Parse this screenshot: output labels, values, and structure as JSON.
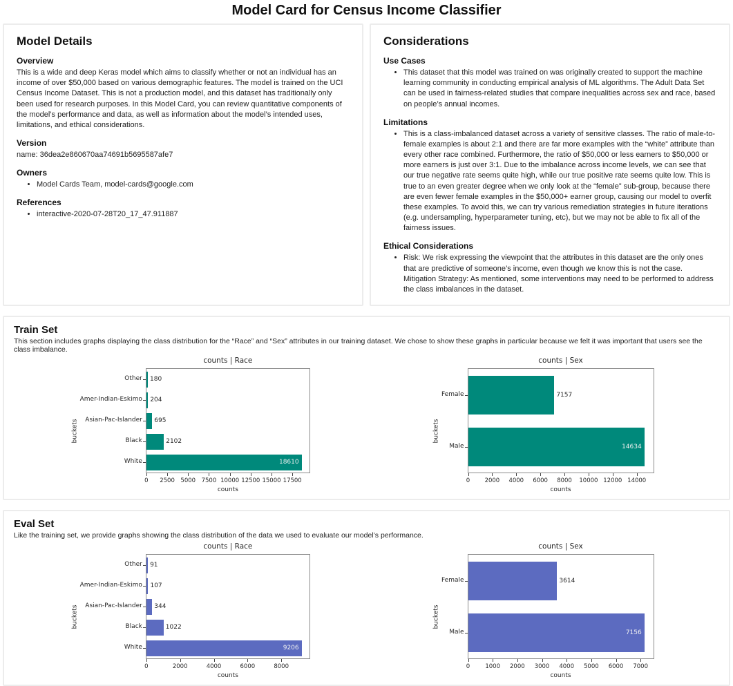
{
  "page_title": "Model Card for Census Income Classifier",
  "model_details": {
    "title": "Model Details",
    "overview_heading": "Overview",
    "overview_text": "This is a wide and deep Keras model which aims to classify whether or not an individual has an income of over $50,000 based on various demographic features. The model is trained on the UCI Census Income Dataset. This is not a production model, and this dataset has traditionally only been used for research purposes. In this Model Card, you can review quantitative components of the model’s performance and data, as well as information about the model’s intended uses, limitations, and ethical considerations.",
    "version_heading": "Version",
    "version_text": "name: 36dea2e860670aa74691b5695587afe7",
    "owners_heading": "Owners",
    "owners_items": [
      "Model Cards Team, model-cards@google.com"
    ],
    "references_heading": "References",
    "references_items": [
      "interactive-2020-07-28T20_17_47.911887"
    ]
  },
  "considerations": {
    "title": "Considerations",
    "use_cases_heading": "Use Cases",
    "use_cases_items": [
      "This dataset that this model was trained on was originally created to support the machine learning community in conducting empirical analysis of ML algorithms. The Adult Data Set can be used in fairness-related studies that compare inequalities across sex and race, based on people’s annual incomes."
    ],
    "limitations_heading": "Limitations",
    "limitations_items": [
      "This is a class-imbalanced dataset across a variety of sensitive classes. The ratio of male-to-female examples is about 2:1 and there are far more examples with the “white” attribute than every other race combined. Furthermore, the ratio of $50,000 or less earners to $50,000 or more earners is just over 3:1. Due to the imbalance across income levels, we can see that our true negative rate seems quite high, while our true positive rate seems quite low. This is true to an even greater degree when we only look at the “female” sub-group, because there are even fewer female examples in the $50,000+ earner group, causing our model to overfit these examples. To avoid this, we can try various remediation strategies in future iterations (e.g. undersampling, hyperparameter tuning, etc), but we may not be able to fix all of the fairness issues."
    ],
    "ethical_heading": "Ethical Considerations",
    "ethical_risk": "Risk: We risk expressing the viewpoint that the attributes in this dataset are the only ones that are predictive of someone’s income, even though we know this is not the case.",
    "ethical_mitigation": "Mitigation Strategy: As mentioned, some interventions may need to be performed to address the class imbalances in the dataset."
  },
  "train_set": {
    "title": "Train Set",
    "description": "This section includes graphs displaying the class distribution for the “Race” and “Sex” attributes in our training dataset. We chose to show these graphs in particular because we felt it was important that users see the class imbalance."
  },
  "eval_set": {
    "title": "Eval Set",
    "description": "Like the training set, we provide graphs showing the class distribution of the data we used to evaluate our model’s performance."
  },
  "chart_data": [
    {
      "name": "train-race-chart",
      "type": "bar",
      "orientation": "horizontal",
      "title": "counts | Race",
      "xlabel": "counts",
      "ylabel": "buckets",
      "categories": [
        "Other",
        "Amer-Indian-Eskimo",
        "Asian-Pac-Islander",
        "Black",
        "White"
      ],
      "values": [
        180,
        204,
        695,
        2102,
        18610
      ],
      "xticks": [
        0,
        2500,
        5000,
        7500,
        10000,
        12500,
        15000,
        17500
      ],
      "xlim": [
        0,
        19541
      ],
      "grid": false,
      "legend": "none",
      "color": "#00897b"
    },
    {
      "name": "train-sex-chart",
      "type": "bar",
      "orientation": "horizontal",
      "title": "counts | Sex",
      "xlabel": "counts",
      "ylabel": "buckets",
      "categories": [
        "Female",
        "Male"
      ],
      "values": [
        7157,
        14634
      ],
      "xticks": [
        0,
        2000,
        4000,
        6000,
        8000,
        10000,
        12000,
        14000
      ],
      "xlim": [
        0,
        15366
      ],
      "grid": false,
      "legend": "none",
      "color": "#00897b"
    },
    {
      "name": "eval-race-chart",
      "type": "bar",
      "orientation": "horizontal",
      "title": "counts | Race",
      "xlabel": "counts",
      "ylabel": "buckets",
      "categories": [
        "Other",
        "Amer-Indian-Eskimo",
        "Asian-Pac-Islander",
        "Black",
        "White"
      ],
      "values": [
        91,
        107,
        344,
        1022,
        9206
      ],
      "xticks": [
        0,
        2000,
        4000,
        6000,
        8000
      ],
      "xlim": [
        0,
        9666
      ],
      "grid": false,
      "legend": "none",
      "color": "#5c6bc0"
    },
    {
      "name": "eval-sex-chart",
      "type": "bar",
      "orientation": "horizontal",
      "title": "counts | Sex",
      "xlabel": "counts",
      "ylabel": "buckets",
      "categories": [
        "Female",
        "Male"
      ],
      "values": [
        3614,
        7156
      ],
      "xticks": [
        0,
        1000,
        2000,
        3000,
        4000,
        5000,
        6000,
        7000
      ],
      "xlim": [
        0,
        7514
      ],
      "grid": false,
      "legend": "none",
      "color": "#5c6bc0"
    }
  ]
}
